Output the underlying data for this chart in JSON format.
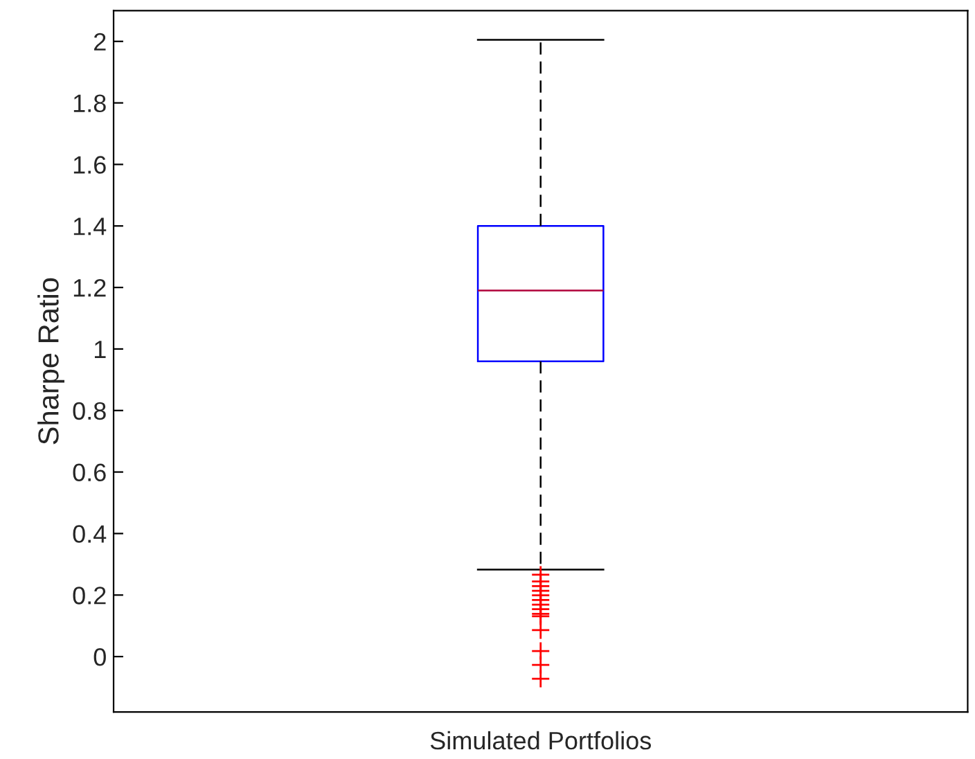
{
  "chart_data": {
    "type": "box",
    "ylabel": "Sharpe Ratio",
    "categories": [
      "Simulated Portfolios"
    ],
    "series": [
      {
        "color": "#0000ff",
        "boxes": [
          {
            "low": 0.283,
            "q1": 0.96,
            "median": 1.19,
            "q3": 1.4,
            "high": 2.005,
            "outliers": [
              0.266,
              0.244,
              0.229,
              0.214,
              0.199,
              0.184,
              0.169,
              0.154,
              0.139,
              0.131,
              0.086,
              0.018,
              -0.027,
              -0.072
            ]
          }
        ]
      }
    ],
    "ylim": [
      -0.18,
      2.1
    ],
    "yticks": [
      0,
      0.2,
      0.4,
      0.6,
      0.8,
      1,
      1.2,
      1.4,
      1.6,
      1.8,
      2
    ],
    "grid": false
  }
}
